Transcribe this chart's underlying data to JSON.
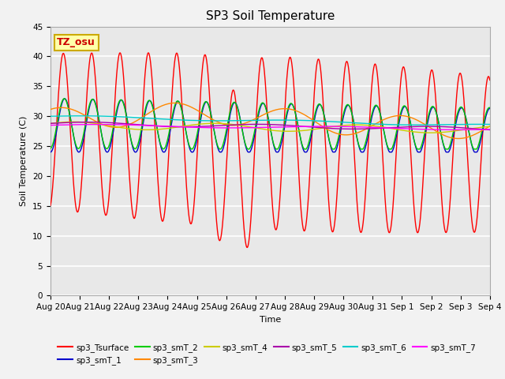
{
  "title": "SP3 Soil Temperature",
  "xlabel": "Time",
  "ylabel": "Soil Temperature (C)",
  "ylim": [
    0,
    45
  ],
  "yticks": [
    0,
    5,
    10,
    15,
    20,
    25,
    30,
    35,
    40,
    45
  ],
  "date_labels": [
    "Aug 20",
    "Aug 21",
    "Aug 22",
    "Aug 23",
    "Aug 24",
    "Aug 25",
    "Aug 26",
    "Aug 27",
    "Aug 28",
    "Aug 29",
    "Aug 30",
    "Aug 31",
    "Sep 1",
    "Sep 2",
    "Sep 3",
    "Sep 4"
  ],
  "annotation_text": "TZ_osu",
  "annotation_box_color": "#FFFFAA",
  "annotation_border_color": "#CCAA00",
  "series_colors": {
    "sp3_Tsurface": "#FF0000",
    "sp3_smT_1": "#0000CC",
    "sp3_smT_2": "#00CC00",
    "sp3_smT_3": "#FF8800",
    "sp3_smT_4": "#CCCC00",
    "sp3_smT_5": "#AA00AA",
    "sp3_smT_6": "#00CCCC",
    "sp3_smT_7": "#FF00FF"
  },
  "bg_color": "#E8E8E8",
  "grid_color": "#FFFFFF",
  "fig_bg": "#F2F2F2"
}
